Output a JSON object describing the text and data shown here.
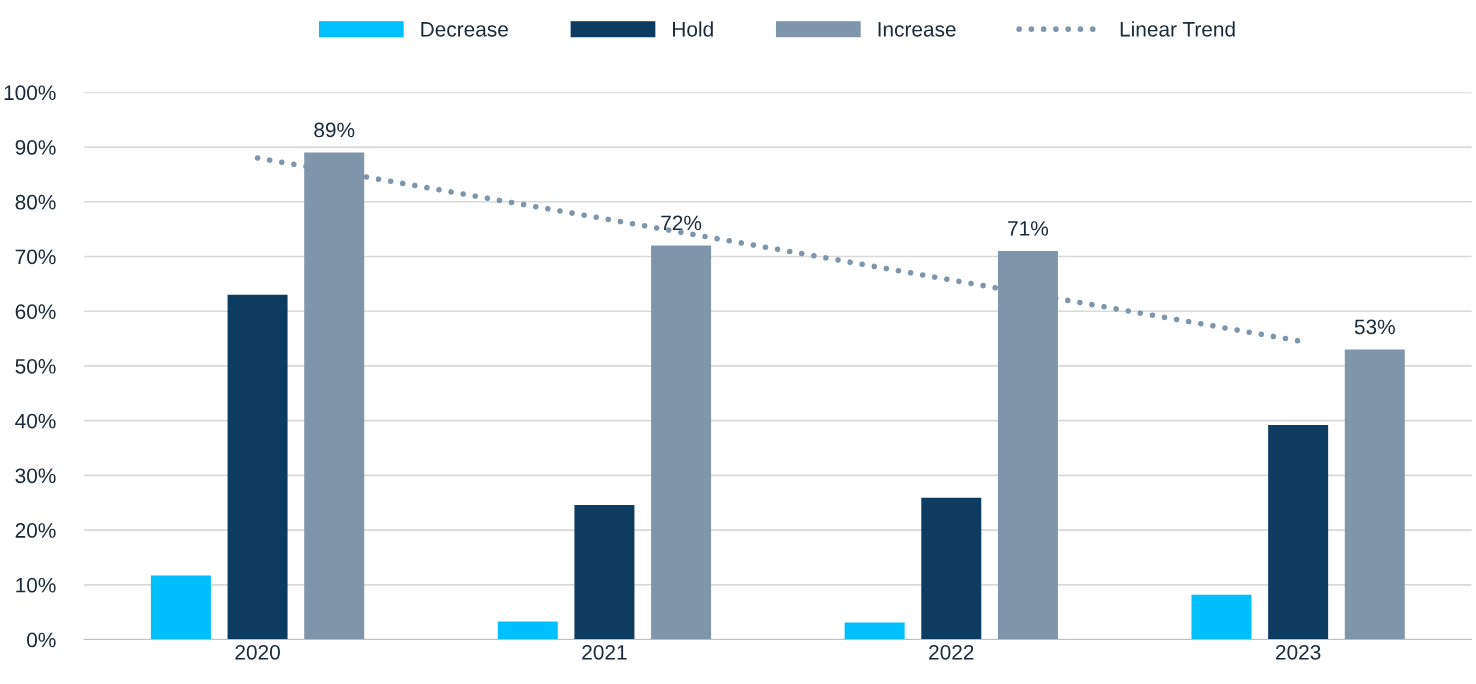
{
  "chart_data": {
    "type": "bar",
    "categories": [
      "2020",
      "2021",
      "2022",
      "2023"
    ],
    "series": [
      {
        "name": "Decrease",
        "color": "#00bfff",
        "values": [
          11.7,
          3.3,
          3.1,
          8.2
        ]
      },
      {
        "name": "Hold",
        "color": "#0e3c61",
        "values": [
          63.0,
          24.6,
          25.9,
          39.2
        ]
      },
      {
        "name": "Increase",
        "color": "#7f96aa",
        "values": [
          89,
          72,
          71,
          53
        ],
        "value_labels": [
          "89%",
          "72%",
          "71%",
          "53%"
        ]
      },
      {
        "name": "Linear Trend",
        "type": "line",
        "color": "#7f96aa",
        "line_style": "dotted",
        "values": [
          88.0,
          76.9,
          65.7,
          54.6
        ]
      }
    ],
    "ylim": [
      0,
      100
    ],
    "yticks": [
      {
        "value": 0,
        "label": "0%"
      },
      {
        "value": 10,
        "label": "10%"
      },
      {
        "value": 20,
        "label": "20%"
      },
      {
        "value": 30,
        "label": "30%"
      },
      {
        "value": 40,
        "label": "40%"
      },
      {
        "value": 50,
        "label": "50%"
      },
      {
        "value": 60,
        "label": "60%"
      },
      {
        "value": 70,
        "label": "70%"
      },
      {
        "value": 80,
        "label": "80%"
      },
      {
        "value": 90,
        "label": "90%"
      },
      {
        "value": 100,
        "label": "100%"
      }
    ],
    "grid": "y",
    "legend": "top"
  }
}
